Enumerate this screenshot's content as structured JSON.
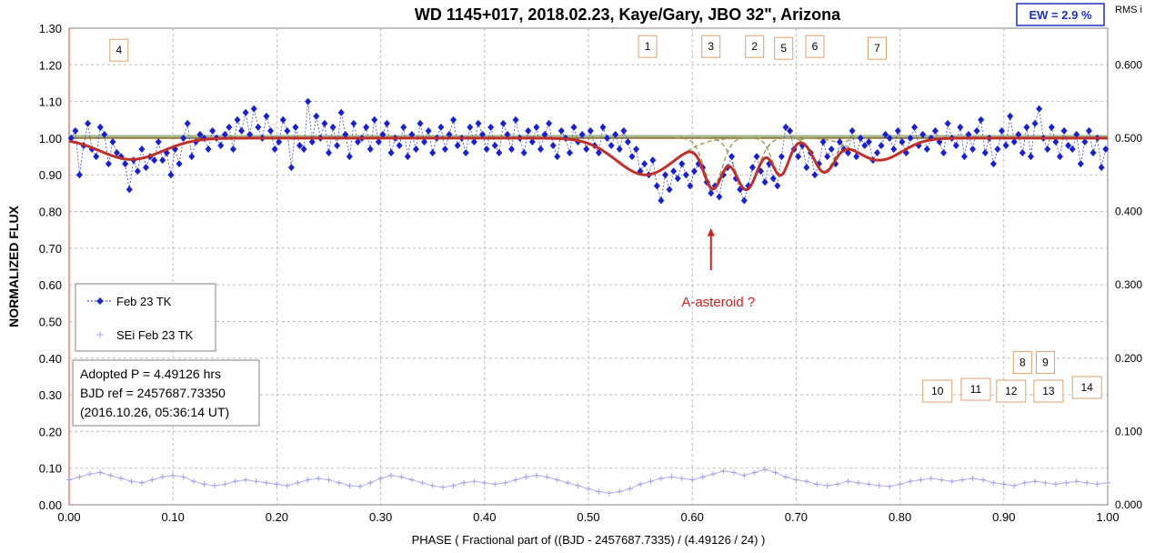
{
  "chart_data": {
    "type": "scatter",
    "title": "WD 1145+017, 2018.02.23, Kaye/Gary,  JBO 32\", Arizona",
    "xlabel": "PHASE  ( Fractional part of ((BJD - 2457687.7335)  / (4.49126 / 24) )",
    "ylabel": "NORMALIZED  FLUX",
    "y2label": "RMS i",
    "xlim": [
      0,
      1
    ],
    "ylim": [
      0,
      1.3
    ],
    "y2lim": [
      0,
      0.65
    ],
    "x_ticks": [
      "0.00",
      "0.10",
      "0.20",
      "0.30",
      "0.40",
      "0.50",
      "0.60",
      "0.70",
      "0.80",
      "0.90",
      "1.00"
    ],
    "y_ticks": [
      "0.00",
      "0.10",
      "0.20",
      "0.30",
      "0.40",
      "0.50",
      "0.60",
      "0.70",
      "0.80",
      "0.90",
      "1.00",
      "1.10",
      "1.20",
      "1.30"
    ],
    "y2_ticks": [
      "0.000",
      "0.100",
      "0.200",
      "0.300",
      "0.400",
      "0.500",
      "0.600"
    ],
    "grid": true,
    "legend_position": "middle-left",
    "legend": [
      "Feb 23 TK",
      "SEi Feb 23 TK"
    ],
    "ew_label": "EW =  2.9 %",
    "info_lines": [
      "Adopted P = 4.49126 hrs",
      "BJD ref = 2457687.73350",
      "(2016.10.26, 05:36:14 UT)"
    ],
    "annotation": {
      "text": "A-asteroid ?",
      "arrow_x": 0.618,
      "arrow_from_y": 0.64,
      "arrow_to_y": 0.755
    },
    "dip_markers": [
      {
        "label": "4",
        "x": 0.048,
        "y": 1.24
      },
      {
        "label": "1",
        "x": 0.557,
        "y": 1.25
      },
      {
        "label": "3",
        "x": 0.618,
        "y": 1.25
      },
      {
        "label": "2",
        "x": 0.66,
        "y": 1.25
      },
      {
        "label": "5",
        "x": 0.688,
        "y": 1.245
      },
      {
        "label": "6",
        "x": 0.718,
        "y": 1.25
      },
      {
        "label": "7",
        "x": 0.778,
        "y": 1.245
      },
      {
        "label": "8",
        "x": 0.918,
        "y": 0.388
      },
      {
        "label": "9",
        "x": 0.94,
        "y": 0.388
      },
      {
        "label": "10",
        "x": 0.836,
        "y": 0.31
      },
      {
        "label": "11",
        "x": 0.873,
        "y": 0.315
      },
      {
        "label": "12",
        "x": 0.907,
        "y": 0.31
      },
      {
        "label": "13",
        "x": 0.943,
        "y": 0.31
      },
      {
        "label": "14",
        "x": 0.98,
        "y": 0.32
      }
    ],
    "model_dips": [
      {
        "center": 0.06,
        "depth": 0.058,
        "width": 0.03
      },
      {
        "center": 0.555,
        "depth": 0.1,
        "width": 0.028
      },
      {
        "center": 0.62,
        "depth": 0.13,
        "width": 0.009
      },
      {
        "center": 0.652,
        "depth": 0.14,
        "width": 0.011
      },
      {
        "center": 0.685,
        "depth": 0.1,
        "width": 0.008
      },
      {
        "center": 0.727,
        "depth": 0.09,
        "width": 0.01
      },
      {
        "center": 0.78,
        "depth": 0.06,
        "width": 0.022
      }
    ],
    "series": [
      {
        "name": "Feb 23 TK",
        "style": "points",
        "x": [
          0.002,
          0.006,
          0.01,
          0.014,
          0.018,
          0.022,
          0.026,
          0.03,
          0.034,
          0.038,
          0.042,
          0.046,
          0.05,
          0.054,
          0.058,
          0.062,
          0.066,
          0.07,
          0.074,
          0.078,
          0.082,
          0.086,
          0.09,
          0.094,
          0.098,
          0.102,
          0.106,
          0.11,
          0.114,
          0.118,
          0.122,
          0.126,
          0.13,
          0.134,
          0.138,
          0.142,
          0.146,
          0.15,
          0.154,
          0.158,
          0.162,
          0.166,
          0.17,
          0.174,
          0.178,
          0.182,
          0.186,
          0.19,
          0.194,
          0.198,
          0.202,
          0.206,
          0.21,
          0.214,
          0.218,
          0.222,
          0.226,
          0.23,
          0.234,
          0.238,
          0.242,
          0.246,
          0.25,
          0.254,
          0.258,
          0.262,
          0.266,
          0.27,
          0.274,
          0.278,
          0.282,
          0.286,
          0.29,
          0.294,
          0.298,
          0.302,
          0.306,
          0.31,
          0.314,
          0.318,
          0.322,
          0.326,
          0.33,
          0.334,
          0.338,
          0.342,
          0.346,
          0.35,
          0.354,
          0.358,
          0.362,
          0.366,
          0.37,
          0.374,
          0.378,
          0.382,
          0.386,
          0.39,
          0.394,
          0.398,
          0.402,
          0.406,
          0.41,
          0.414,
          0.418,
          0.422,
          0.426,
          0.43,
          0.434,
          0.438,
          0.442,
          0.446,
          0.45,
          0.454,
          0.458,
          0.462,
          0.466,
          0.47,
          0.474,
          0.478,
          0.482,
          0.486,
          0.49,
          0.494,
          0.498,
          0.502,
          0.506,
          0.51,
          0.514,
          0.518,
          0.522,
          0.526,
          0.53,
          0.534,
          0.538,
          0.542,
          0.546,
          0.55,
          0.554,
          0.558,
          0.562,
          0.566,
          0.57,
          0.574,
          0.578,
          0.582,
          0.586,
          0.59,
          0.594,
          0.598,
          0.602,
          0.606,
          0.61,
          0.614,
          0.618,
          0.622,
          0.626,
          0.63,
          0.634,
          0.638,
          0.642,
          0.646,
          0.65,
          0.654,
          0.658,
          0.662,
          0.666,
          0.67,
          0.674,
          0.678,
          0.682,
          0.686,
          0.69,
          0.694,
          0.698,
          0.702,
          0.706,
          0.71,
          0.714,
          0.718,
          0.722,
          0.726,
          0.73,
          0.734,
          0.738,
          0.742,
          0.746,
          0.75,
          0.754,
          0.758,
          0.762,
          0.766,
          0.77,
          0.774,
          0.778,
          0.782,
          0.786,
          0.79,
          0.794,
          0.798,
          0.802,
          0.806,
          0.81,
          0.814,
          0.818,
          0.822,
          0.826,
          0.83,
          0.834,
          0.838,
          0.842,
          0.846,
          0.85,
          0.854,
          0.858,
          0.862,
          0.866,
          0.87,
          0.874,
          0.878,
          0.882,
          0.886,
          0.89,
          0.894,
          0.898,
          0.902,
          0.906,
          0.91,
          0.914,
          0.918,
          0.922,
          0.926,
          0.93,
          0.934,
          0.938,
          0.942,
          0.946,
          0.95,
          0.954,
          0.958,
          0.962,
          0.966,
          0.97,
          0.974,
          0.978,
          0.982,
          0.986,
          0.99,
          0.994,
          0.998
        ],
        "y": [
          1.0,
          1.02,
          0.9,
          0.98,
          1.04,
          0.97,
          0.95,
          1.03,
          1.01,
          0.93,
          0.99,
          0.96,
          0.95,
          0.93,
          0.86,
          0.94,
          0.91,
          0.97,
          0.92,
          0.95,
          0.94,
          0.99,
          0.94,
          0.96,
          0.9,
          0.97,
          0.93,
          1.0,
          1.04,
          0.95,
          0.99,
          1.01,
          1.0,
          0.97,
          1.02,
          1.0,
          0.98,
          1.01,
          1.03,
          0.97,
          1.05,
          1.02,
          1.07,
          1.01,
          1.08,
          1.03,
          1.0,
          1.06,
          1.02,
          0.97,
          0.99,
          1.05,
          1.02,
          0.92,
          1.03,
          0.98,
          0.97,
          1.1,
          0.99,
          1.06,
          1.0,
          1.04,
          0.96,
          1.03,
          0.98,
          1.07,
          1.01,
          0.95,
          1.04,
          0.99,
          1.0,
          1.03,
          0.97,
          1.05,
          0.99,
          1.01,
          1.04,
          0.96,
          1.0,
          0.98,
          1.03,
          0.95,
          1.01,
          0.97,
          1.04,
          0.99,
          1.02,
          0.96,
          1.0,
          1.03,
          0.97,
          1.01,
          1.05,
          0.98,
          1.0,
          0.96,
          1.03,
          0.99,
          1.04,
          1.01,
          0.97,
          1.03,
          0.98,
          0.96,
          1.04,
          1.01,
          0.97,
          1.05,
          1.0,
          0.96,
          1.02,
          0.99,
          1.03,
          0.97,
          1.01,
          1.04,
          0.98,
          0.95,
          1.02,
          1.0,
          0.96,
          1.03,
          0.99,
          1.01,
          0.97,
          1.02,
          0.98,
          0.96,
          1.03,
          1.0,
          0.98,
          1.01,
          0.97,
          1.02,
          0.99,
          0.95,
          0.97,
          0.91,
          0.93,
          0.9,
          0.94,
          0.87,
          0.83,
          0.9,
          0.86,
          0.91,
          0.89,
          0.93,
          0.9,
          0.87,
          0.91,
          0.93,
          0.92,
          0.88,
          0.85,
          0.87,
          0.84,
          0.9,
          0.92,
          0.95,
          0.89,
          0.86,
          0.83,
          0.87,
          0.92,
          0.95,
          0.91,
          0.88,
          0.93,
          0.89,
          0.87,
          0.95,
          1.03,
          1.02,
          0.97,
          0.95,
          0.98,
          0.92,
          0.96,
          0.9,
          0.93,
          0.99,
          0.95,
          0.97,
          0.93,
          0.99,
          0.97,
          0.96,
          1.02,
          0.95,
          1.0,
          0.98,
          0.99,
          0.94,
          0.96,
          0.98,
          1.01,
          1.0,
          0.97,
          1.02,
          0.99,
          0.96,
          1.0,
          1.03,
          0.98,
          1.01,
          0.97,
          1.0,
          1.02,
          0.99,
          0.96,
          1.04,
          1.0,
          0.98,
          1.03,
          0.95,
          1.01,
          0.97,
          1.02,
          1.05,
          0.96,
          1.0,
          0.93,
          0.97,
          1.02,
          0.98,
          1.06,
          0.99,
          1.01,
          0.96,
          1.03,
          0.95,
          1.04,
          1.08,
          1.0,
          0.97,
          1.03,
          0.99,
          0.95,
          1.02,
          0.98,
          0.97,
          1.01,
          0.93,
          0.99,
          1.02,
          0.96,
          1.0,
          0.92,
          0.97
        ]
      },
      {
        "name": "SEi Feb 23 TK",
        "style": "cross",
        "axis": "right",
        "x": [
          0.0,
          0.01,
          0.02,
          0.03,
          0.04,
          0.05,
          0.06,
          0.07,
          0.08,
          0.09,
          0.1,
          0.11,
          0.12,
          0.13,
          0.14,
          0.15,
          0.16,
          0.17,
          0.18,
          0.19,
          0.2,
          0.21,
          0.22,
          0.23,
          0.24,
          0.25,
          0.26,
          0.27,
          0.28,
          0.29,
          0.3,
          0.31,
          0.32,
          0.33,
          0.34,
          0.35,
          0.36,
          0.37,
          0.38,
          0.39,
          0.4,
          0.41,
          0.42,
          0.43,
          0.44,
          0.45,
          0.46,
          0.47,
          0.48,
          0.49,
          0.5,
          0.51,
          0.52,
          0.53,
          0.54,
          0.55,
          0.56,
          0.57,
          0.58,
          0.59,
          0.6,
          0.61,
          0.62,
          0.63,
          0.64,
          0.65,
          0.66,
          0.67,
          0.68,
          0.69,
          0.7,
          0.71,
          0.72,
          0.73,
          0.74,
          0.75,
          0.76,
          0.77,
          0.78,
          0.79,
          0.8,
          0.81,
          0.82,
          0.83,
          0.84,
          0.85,
          0.86,
          0.87,
          0.88,
          0.89,
          0.9,
          0.91,
          0.92,
          0.93,
          0.94,
          0.95,
          0.96,
          0.97,
          0.98,
          0.99,
          1.0
        ],
        "y": [
          0.034,
          0.038,
          0.042,
          0.044,
          0.04,
          0.036,
          0.032,
          0.03,
          0.034,
          0.038,
          0.04,
          0.038,
          0.032,
          0.028,
          0.026,
          0.028,
          0.032,
          0.034,
          0.032,
          0.03,
          0.028,
          0.026,
          0.03,
          0.034,
          0.036,
          0.034,
          0.03,
          0.026,
          0.025,
          0.03,
          0.036,
          0.04,
          0.038,
          0.034,
          0.03,
          0.026,
          0.024,
          0.026,
          0.03,
          0.032,
          0.03,
          0.028,
          0.03,
          0.034,
          0.038,
          0.04,
          0.038,
          0.034,
          0.03,
          0.026,
          0.022,
          0.018,
          0.016,
          0.018,
          0.022,
          0.028,
          0.032,
          0.036,
          0.038,
          0.036,
          0.034,
          0.038,
          0.042,
          0.046,
          0.044,
          0.04,
          0.044,
          0.048,
          0.044,
          0.038,
          0.034,
          0.032,
          0.028,
          0.026,
          0.028,
          0.032,
          0.03,
          0.028,
          0.026,
          0.025,
          0.028,
          0.032,
          0.034,
          0.036,
          0.034,
          0.032,
          0.034,
          0.036,
          0.034,
          0.03,
          0.028,
          0.026,
          0.03,
          0.032,
          0.03,
          0.028,
          0.03,
          0.032,
          0.03,
          0.028,
          0.03
        ]
      }
    ]
  }
}
